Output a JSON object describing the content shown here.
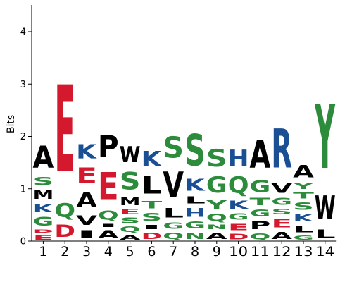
{
  "chart_data": {
    "type": "sequence-logo",
    "ylabel": "Bits",
    "ylim": [
      0,
      4.5
    ],
    "yticks": [
      "0",
      "1",
      "2",
      "3",
      "4"
    ],
    "positions": [
      "1",
      "2",
      "3",
      "4",
      "5",
      "6",
      "7",
      "8",
      "9",
      "10",
      "11",
      "12",
      "13",
      "14"
    ],
    "colors": {
      "A": "#000000",
      "C": "#2c8c3c",
      "D": "#d4192f",
      "E": "#d4192f",
      "F": "#000000",
      "G": "#2c8c3c",
      "H": "#1a4f94",
      "I": "#000000",
      "K": "#1a4f94",
      "L": "#000000",
      "M": "#000000",
      "N": "#2c8c3c",
      "P": "#000000",
      "Q": "#2c8c3c",
      "R": "#1a4f94",
      "S": "#2c8c3c",
      "T": "#2c8c3c",
      "V": "#000000",
      "W": "#000000",
      "Y": "#2c8c3c"
    },
    "stacks": [
      [
        {
          "letter": "E",
          "height": 0.14
        },
        {
          "letter": "D",
          "height": 0.1
        },
        {
          "letter": "G",
          "height": 0.26
        },
        {
          "letter": "K",
          "height": 0.25
        },
        {
          "letter": "M",
          "height": 0.27
        },
        {
          "letter": "S",
          "height": 0.25
        },
        {
          "letter": "A",
          "height": 0.67
        }
      ],
      [
        {
          "letter": "D",
          "height": 0.38
        },
        {
          "letter": "Q",
          "height": 0.42
        },
        {
          "letter": "E",
          "height": 2.65
        }
      ],
      [
        {
          "letter": "I",
          "height": 0.25
        },
        {
          "letter": "V",
          "height": 0.3
        },
        {
          "letter": "A",
          "height": 0.46
        },
        {
          "letter": "E",
          "height": 0.48
        },
        {
          "letter": "K",
          "height": 0.44
        }
      ],
      [
        {
          "letter": "A",
          "height": 0.25
        },
        {
          "letter": "I",
          "height": 0.1
        },
        {
          "letter": "Q",
          "height": 0.28
        },
        {
          "letter": "E",
          "height": 0.83
        },
        {
          "letter": "P",
          "height": 0.68
        }
      ],
      [
        {
          "letter": "A",
          "height": 0.14
        },
        {
          "letter": "Q",
          "height": 0.17
        },
        {
          "letter": "S",
          "height": 0.17
        },
        {
          "letter": "E",
          "height": 0.16
        },
        {
          "letter": "M",
          "height": 0.24
        },
        {
          "letter": "S",
          "height": 0.53
        },
        {
          "letter": "W",
          "height": 0.49
        }
      ],
      [
        {
          "letter": "D",
          "height": 0.2
        },
        {
          "letter": "I",
          "height": 0.13
        },
        {
          "letter": "S",
          "height": 0.25
        },
        {
          "letter": "T",
          "height": 0.22
        },
        {
          "letter": "L",
          "height": 0.54
        },
        {
          "letter": "K",
          "height": 0.46
        }
      ],
      [
        {
          "letter": "Q",
          "height": 0.2
        },
        {
          "letter": "G",
          "height": 0.19
        },
        {
          "letter": "L",
          "height": 0.3
        },
        {
          "letter": "V",
          "height": 0.77
        },
        {
          "letter": "S",
          "height": 0.65
        }
      ],
      [
        {
          "letter": "N",
          "height": 0.2
        },
        {
          "letter": "G",
          "height": 0.21
        },
        {
          "letter": "H",
          "height": 0.27
        },
        {
          "letter": "L",
          "height": 0.21
        },
        {
          "letter": "K",
          "height": 0.36
        },
        {
          "letter": "S",
          "height": 0.97
        }
      ],
      [
        {
          "letter": "A",
          "height": 0.2
        },
        {
          "letter": "N",
          "height": 0.14
        },
        {
          "letter": "Q",
          "height": 0.22
        },
        {
          "letter": "Y",
          "height": 0.27
        },
        {
          "letter": "G",
          "height": 0.49
        },
        {
          "letter": "S",
          "height": 0.53
        }
      ],
      [
        {
          "letter": "D",
          "height": 0.17
        },
        {
          "letter": "E",
          "height": 0.2
        },
        {
          "letter": "G",
          "height": 0.2
        },
        {
          "letter": "K",
          "height": 0.25
        },
        {
          "letter": "Q",
          "height": 0.51
        },
        {
          "letter": "H",
          "height": 0.51
        }
      ],
      [
        {
          "letter": "Q",
          "height": 0.18
        },
        {
          "letter": "P",
          "height": 0.25
        },
        {
          "letter": "G",
          "height": 0.21
        },
        {
          "letter": "T",
          "height": 0.22
        },
        {
          "letter": "G",
          "height": 0.37
        },
        {
          "letter": "A",
          "height": 0.86
        }
      ],
      [
        {
          "letter": "A",
          "height": 0.21
        },
        {
          "letter": "E",
          "height": 0.27
        },
        {
          "letter": "S",
          "height": 0.17
        },
        {
          "letter": "G",
          "height": 0.21
        },
        {
          "letter": "V",
          "height": 0.3
        },
        {
          "letter": "R",
          "height": 1.19
        }
      ],
      [
        {
          "letter": "G",
          "height": 0.13
        },
        {
          "letter": "L",
          "height": 0.2
        },
        {
          "letter": "K",
          "height": 0.22
        },
        {
          "letter": "S",
          "height": 0.23
        },
        {
          "letter": "T",
          "height": 0.18
        },
        {
          "letter": "Y",
          "height": 0.18
        },
        {
          "letter": "A",
          "height": 0.38
        }
      ],
      [
        {
          "letter": "L",
          "height": 0.27
        },
        {
          "letter": "W",
          "height": 0.73
        },
        {
          "letter": "Y",
          "height": 1.96
        }
      ]
    ]
  }
}
